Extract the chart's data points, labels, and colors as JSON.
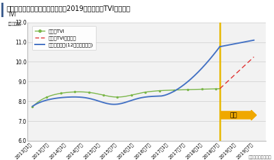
{
  "title": "図　大阪府の需給ギャップ推移と2019年の空室率TVI推移予測",
  "ylabel_top": "TVI",
  "ylabel_unit": "（ポイント）",
  "source": "分析：株式会社タス",
  "ylim": [
    6.0,
    12.0
  ],
  "yticks": [
    6.0,
    7.0,
    8.0,
    9.0,
    10.0,
    11.0,
    12.0
  ],
  "xtick_labels": [
    "2013年1月",
    "2013年7月",
    "2014年1月",
    "2014年7月",
    "2015年1月",
    "2015年7月",
    "2016年1月",
    "2016年7月",
    "2017年1月",
    "2017年7月",
    "2018年1月",
    "2018年7月",
    "2019年1月",
    "2019年7月"
  ],
  "vline_x_idx": 11,
  "yoso_label": "予測",
  "legend": [
    "空室率TVI",
    "空室率TVI推移予測",
    "需給ギャップ(12か月移動平均)"
  ],
  "line1_color": "#7ab648",
  "line2_color": "#e03030",
  "line3_color": "#4472c4",
  "vline_color": "#e8b800",
  "arrow_color": "#f0a800",
  "arrow_text_color": "#000000",
  "background_color": "#ffffff",
  "plot_bg_color": "#f2f2f2",
  "grid_color": "#cccccc",
  "title_bar_color": "#3f5f8f",
  "title_fontsize": 7.0,
  "axis_fontsize": 5.5,
  "legend_fontsize": 5.0,
  "source_fontsize": 4.5
}
